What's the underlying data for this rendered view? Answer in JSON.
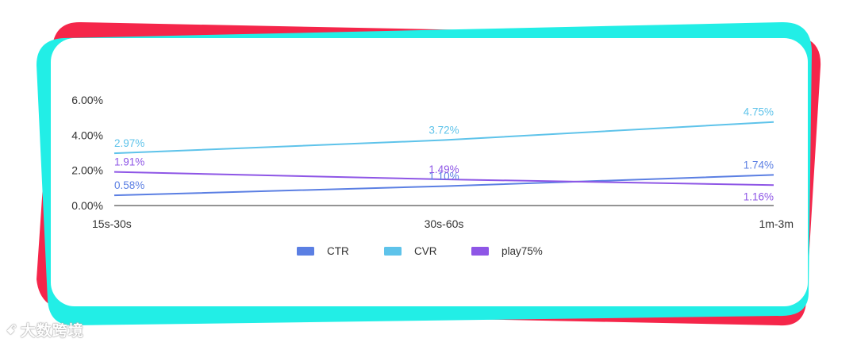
{
  "colors": {
    "frame_red": "#f5264a",
    "frame_cyan": "#22eee6",
    "card": "#ffffff",
    "axis": "#555555",
    "tick_text": "#333333"
  },
  "watermark": {
    "logo": "ꗃ",
    "text": "大数跨境"
  },
  "chart_data": {
    "type": "line",
    "categories": [
      "15s-30s",
      "30s-60s",
      "1m-3m"
    ],
    "ylim": [
      0,
      6
    ],
    "yticks": [
      "0.00%",
      "2.00%",
      "4.00%",
      "6.00%"
    ],
    "ytick_values": [
      0,
      2,
      4,
      6
    ],
    "legend_position": "bottom",
    "grid": false,
    "series": [
      {
        "name": "CTR",
        "color": "#5b7fe3",
        "values": [
          0.58,
          1.1,
          1.74
        ],
        "labels": [
          "0.58%",
          "1.10%",
          "1.74%"
        ]
      },
      {
        "name": "CVR",
        "color": "#5ec3ea",
        "values": [
          2.97,
          3.72,
          4.75
        ],
        "labels": [
          "2.97%",
          "3.72%",
          "4.75%"
        ]
      },
      {
        "name": "play75%",
        "color": "#8e56e6",
        "values": [
          1.91,
          1.49,
          1.16
        ],
        "labels": [
          "1.91%",
          "1.49%",
          "1.16%"
        ]
      }
    ]
  }
}
